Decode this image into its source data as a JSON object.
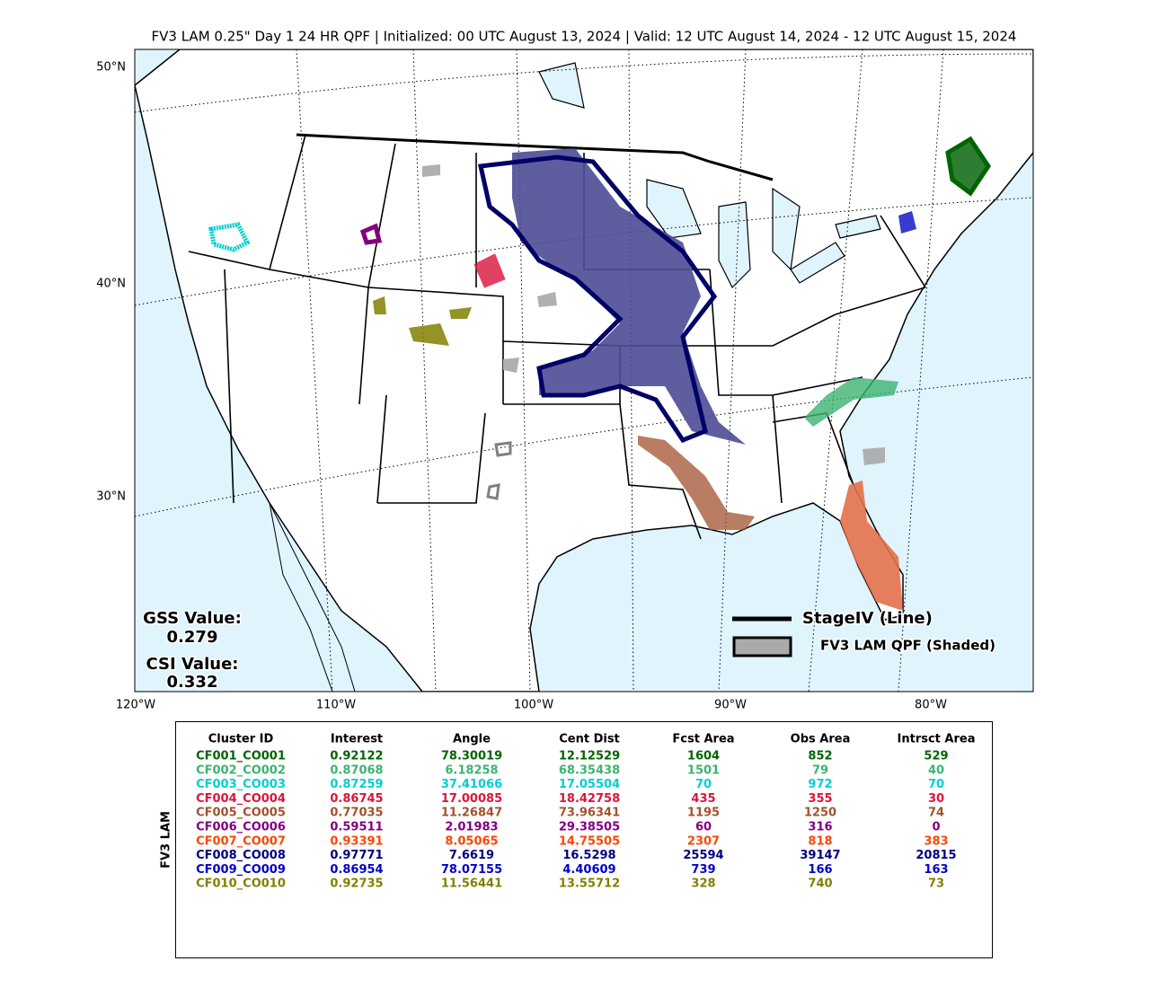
{
  "header": {
    "title": "FV3 LAM 0.25\" Day 1 24 HR QPF | Initialized: 00 UTC August 13, 2024 | Valid: 12 UTC August 14, 2024 - 12 UTC August 15, 2024"
  },
  "map": {
    "lat_labels": [
      "50°N",
      "40°N",
      "30°N"
    ],
    "lon_labels": [
      "120°W",
      "110°W",
      "100°W",
      "90°W",
      "80°W"
    ],
    "gss": {
      "label": "GSS Value:",
      "value": "0.279"
    },
    "csi": {
      "label": "CSI Value:",
      "value": "0.332"
    },
    "legend": {
      "line": "StageIV (Line)",
      "shaded": "FV3 LAM QPF (Shaded)"
    }
  },
  "table": {
    "side_label": "FV3 LAM",
    "columns": [
      "Cluster ID",
      "Interest",
      "Angle",
      "Cent Dist",
      "Fcst Area",
      "Obs Area",
      "Intrsct Area"
    ],
    "rows": [
      {
        "color": "#006400",
        "cells": [
          "CF001_CO001",
          0.92122,
          78.30019,
          12.12529,
          1604,
          852,
          529
        ]
      },
      {
        "color": "#3cb371",
        "cells": [
          "CF002_CO002",
          0.87068,
          6.18258,
          68.35438,
          1501,
          79,
          40
        ]
      },
      {
        "color": "#00ced1",
        "cells": [
          "CF003_CO003",
          0.87259,
          37.41066,
          17.05504,
          70,
          972,
          70
        ]
      },
      {
        "color": "#dc143c",
        "cells": [
          "CF004_CO004",
          0.86745,
          17.00085,
          18.42758,
          435,
          355,
          30
        ]
      },
      {
        "color": "#a0522d",
        "cells": [
          "CF005_CO005",
          0.77035,
          11.26847,
          73.96341,
          1195,
          1250,
          74
        ]
      },
      {
        "color": "#800080",
        "cells": [
          "CF006_CO006",
          0.59511,
          2.01983,
          29.38505,
          60,
          316,
          0
        ]
      },
      {
        "color": "#ff4500",
        "cells": [
          "CF007_CO007",
          0.93391,
          8.05065,
          14.75505,
          2307,
          818,
          383
        ]
      },
      {
        "color": "#000080",
        "cells": [
          "CF008_CO008",
          0.97771,
          7.6619,
          16.5298,
          25594,
          39147,
          20815
        ]
      },
      {
        "color": "#0000cd",
        "cells": [
          "CF009_CO009",
          0.86954,
          78.07155,
          4.40609,
          739,
          166,
          163
        ]
      },
      {
        "color": "#808000",
        "cells": [
          "CF010_CO010",
          0.92735,
          11.56441,
          13.55712,
          328,
          740,
          73
        ]
      }
    ]
  }
}
